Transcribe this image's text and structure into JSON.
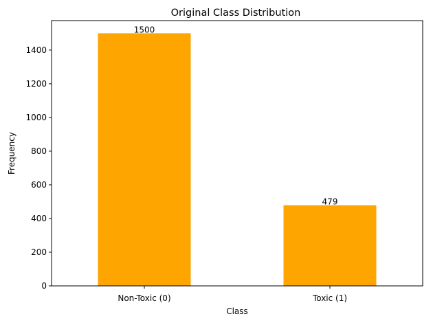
{
  "chart_data": {
    "type": "bar",
    "title": "Original Class Distribution",
    "xlabel": "Class",
    "ylabel": "Frequency",
    "categories": [
      "Non-Toxic (0)",
      "Toxic (1)"
    ],
    "values": [
      1500,
      479
    ],
    "data_labels": [
      "1500",
      "479"
    ],
    "ylim": [
      0,
      1575
    ],
    "yticks": [
      0,
      200,
      400,
      600,
      800,
      1000,
      1200,
      1400
    ],
    "ytick_labels": [
      "0",
      "200",
      "400",
      "600",
      "800",
      "1000",
      "1200",
      "1400"
    ],
    "bar_color": "#ffa500",
    "grid": false,
    "legend": "none"
  }
}
